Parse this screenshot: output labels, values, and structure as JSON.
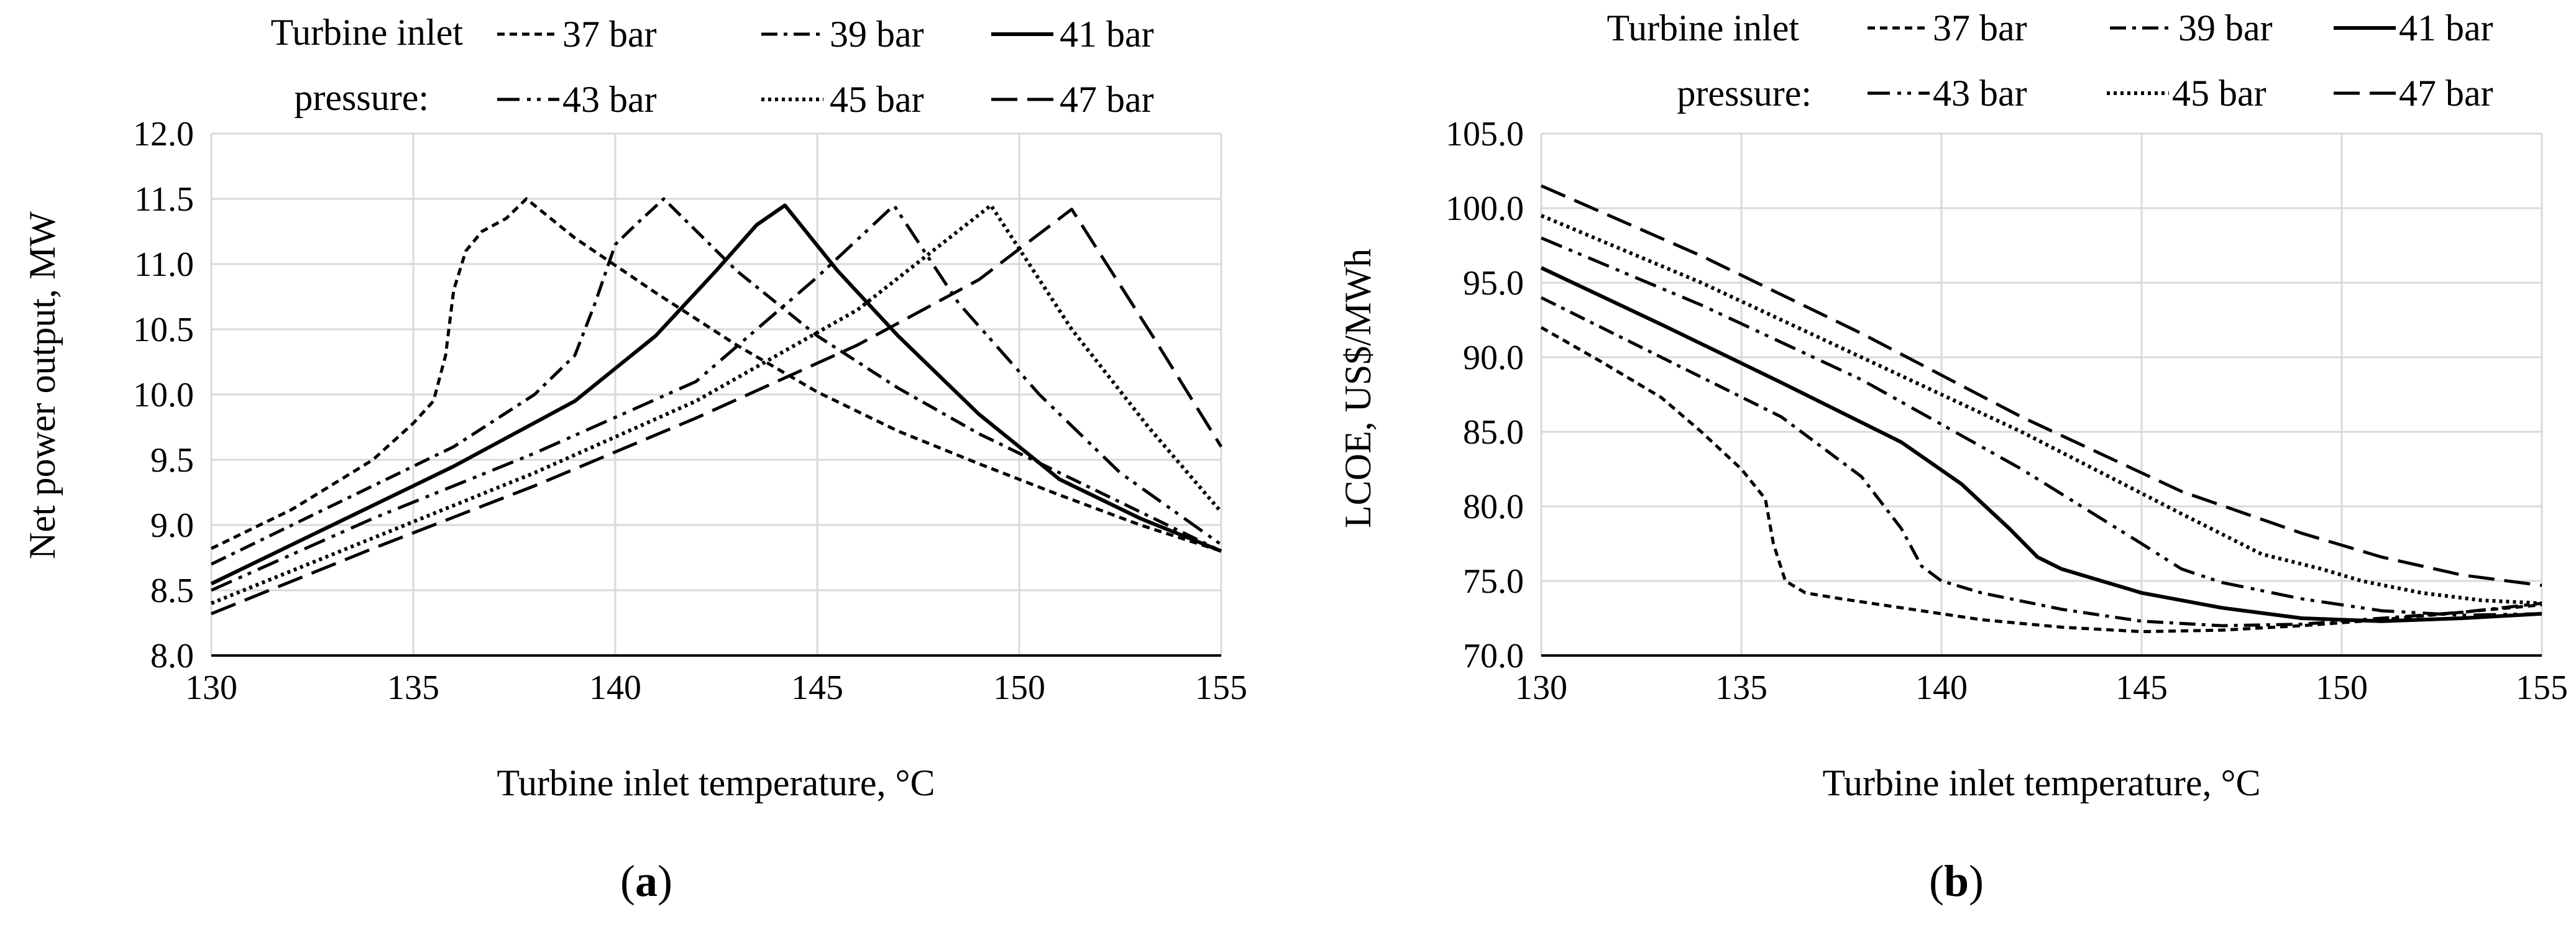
{
  "styles": {
    "37 bar": {
      "dash": "12,8",
      "width": 5
    },
    "39 bar": {
      "dash": "26,10,6,10",
      "width": 5
    },
    "41 bar": {
      "dash": "",
      "width": 6
    },
    "43 bar": {
      "dash": "36,12,6,10,6,12",
      "width": 5
    },
    "45 bar": {
      "dash": "5,6",
      "width": 6
    },
    "47 bar": {
      "dash": "42,16",
      "width": 5
    }
  },
  "chart_data": [
    {
      "id": "a",
      "type": "line",
      "caption_letter": "a",
      "title": "",
      "xlabel": "Turbine inlet temperature, °C",
      "ylabel": "Net power output, MW",
      "xlim": [
        130,
        155
      ],
      "ylim": [
        8.0,
        12.0
      ],
      "xticks": [
        130,
        135,
        140,
        145,
        150,
        155
      ],
      "yticks": [
        8.0,
        8.5,
        9.0,
        9.5,
        10.0,
        10.5,
        11.0,
        11.5,
        12.0
      ],
      "xtick_labels": [
        "130",
        "135",
        "140",
        "145",
        "150",
        "155"
      ],
      "ytick_labels": [
        "8.0",
        "8.5",
        "9.0",
        "9.5",
        "10.0",
        "10.5",
        "11.0",
        "11.5",
        "12.0"
      ],
      "grid": true,
      "legend_title_line1": "Turbine inlet",
      "legend_title_line2": "pressure:",
      "series": [
        {
          "name": "37 bar",
          "x": [
            130,
            132,
            134,
            135,
            135.5,
            135.8,
            136,
            136.3,
            136.7,
            137.3,
            137.8,
            139,
            141,
            143,
            145,
            147,
            149,
            151,
            153,
            155
          ],
          "y": [
            8.82,
            9.12,
            9.5,
            9.78,
            9.95,
            10.3,
            10.8,
            11.1,
            11.25,
            11.35,
            11.5,
            11.2,
            10.78,
            10.38,
            10.02,
            9.72,
            9.47,
            9.23,
            9.0,
            8.8
          ]
        },
        {
          "name": "39 bar",
          "x": [
            130,
            133,
            136,
            138,
            139,
            139.5,
            140,
            140.5,
            141.2,
            143,
            145,
            147,
            149,
            151,
            153,
            155
          ],
          "y": [
            8.7,
            9.15,
            9.6,
            10.0,
            10.3,
            10.7,
            11.15,
            11.3,
            11.5,
            10.95,
            10.45,
            10.05,
            9.7,
            9.4,
            9.1,
            8.8
          ]
        },
        {
          "name": "41 bar",
          "x": [
            130,
            133,
            136,
            139,
            141,
            142.5,
            143.5,
            144.2,
            145.5,
            147,
            149,
            151,
            153,
            155
          ],
          "y": [
            8.55,
            9.0,
            9.45,
            9.95,
            10.45,
            10.95,
            11.3,
            11.45,
            10.95,
            10.45,
            9.85,
            9.35,
            9.05,
            8.8
          ]
        },
        {
          "name": "43 bar",
          "x": [
            130,
            134,
            138,
            142,
            145,
            146.9,
            148.5,
            150.5,
            152.5,
            155
          ],
          "y": [
            8.5,
            9.05,
            9.55,
            10.1,
            10.9,
            11.45,
            10.7,
            10.0,
            9.4,
            8.85
          ]
        },
        {
          "name": "45 bar",
          "x": [
            130,
            134,
            138,
            142,
            146,
            149.3,
            151.3,
            153.2,
            155
          ],
          "y": [
            8.4,
            8.9,
            9.4,
            9.95,
            10.65,
            11.45,
            10.5,
            9.75,
            9.1
          ]
        },
        {
          "name": "47 bar",
          "x": [
            130,
            134,
            138,
            142,
            146,
            149,
            151.3,
            153.3,
            155
          ],
          "y": [
            8.32,
            8.82,
            9.3,
            9.82,
            10.38,
            10.88,
            11.42,
            10.45,
            9.6
          ]
        }
      ]
    },
    {
      "id": "b",
      "type": "line",
      "caption_letter": "b",
      "title": "",
      "xlabel": "Turbine inlet temperature, °C",
      "ylabel": "LCOE, US$/MWh",
      "xlim": [
        130,
        155
      ],
      "ylim": [
        70.0,
        105.0
      ],
      "xticks": [
        130,
        135,
        140,
        145,
        150,
        155
      ],
      "yticks": [
        70.0,
        75.0,
        80.0,
        85.0,
        90.0,
        95.0,
        100.0,
        105.0
      ],
      "xtick_labels": [
        "130",
        "135",
        "140",
        "145",
        "150",
        "155"
      ],
      "ytick_labels": [
        "70.0",
        "75.0",
        "80.0",
        "85.0",
        "90.0",
        "95.0",
        "100.0",
        "105.0"
      ],
      "grid": true,
      "legend_title_line1": "Turbine inlet",
      "legend_title_line2": "pressure:",
      "series": [
        {
          "name": "37 bar",
          "x": [
            130,
            131.5,
            133,
            134,
            135,
            135.6,
            135.8,
            136.1,
            136.6,
            137.5,
            139,
            141,
            143,
            145,
            147,
            149,
            151,
            153,
            155
          ],
          "y": [
            92.0,
            89.7,
            87.3,
            85.0,
            82.5,
            80.5,
            77.5,
            75.0,
            74.2,
            73.8,
            73.2,
            72.4,
            71.9,
            71.6,
            71.7,
            72.0,
            72.4,
            72.9,
            73.4
          ]
        },
        {
          "name": "39 bar",
          "x": [
            130,
            133,
            136,
            138,
            139,
            139.5,
            140,
            141,
            143,
            145,
            147,
            149,
            151,
            153,
            155
          ],
          "y": [
            94.0,
            90.0,
            86.0,
            82.0,
            78.5,
            76.0,
            75.0,
            74.2,
            73.1,
            72.3,
            72.0,
            72.1,
            72.5,
            72.9,
            73.5
          ]
        },
        {
          "name": "41 bar",
          "x": [
            130,
            133,
            136,
            139,
            140.5,
            141.7,
            142.4,
            143,
            144,
            145,
            147,
            149,
            151,
            153,
            155
          ],
          "y": [
            96.0,
            92.2,
            88.3,
            84.3,
            81.5,
            78.5,
            76.6,
            75.8,
            75.0,
            74.2,
            73.2,
            72.5,
            72.3,
            72.5,
            72.8
          ]
        },
        {
          "name": "43 bar",
          "x": [
            130,
            134,
            138,
            142,
            145,
            146,
            147,
            149,
            151,
            153,
            155
          ],
          "y": [
            98.0,
            93.5,
            88.5,
            82.5,
            77.5,
            75.8,
            74.9,
            73.8,
            73.0,
            72.7,
            72.8
          ]
        },
        {
          "name": "45 bar",
          "x": [
            130,
            134,
            138,
            142,
            146,
            148,
            149.5,
            150.5,
            152,
            153.5,
            155
          ],
          "y": [
            99.5,
            95.0,
            90.0,
            85.0,
            79.5,
            76.8,
            75.8,
            75.0,
            74.2,
            73.7,
            73.5
          ]
        },
        {
          "name": "47 bar",
          "x": [
            130,
            134,
            138,
            142,
            146,
            149,
            151,
            153,
            155
          ],
          "y": [
            101.5,
            96.8,
            91.6,
            86.0,
            81.0,
            78.2,
            76.6,
            75.4,
            74.7
          ]
        }
      ]
    }
  ]
}
